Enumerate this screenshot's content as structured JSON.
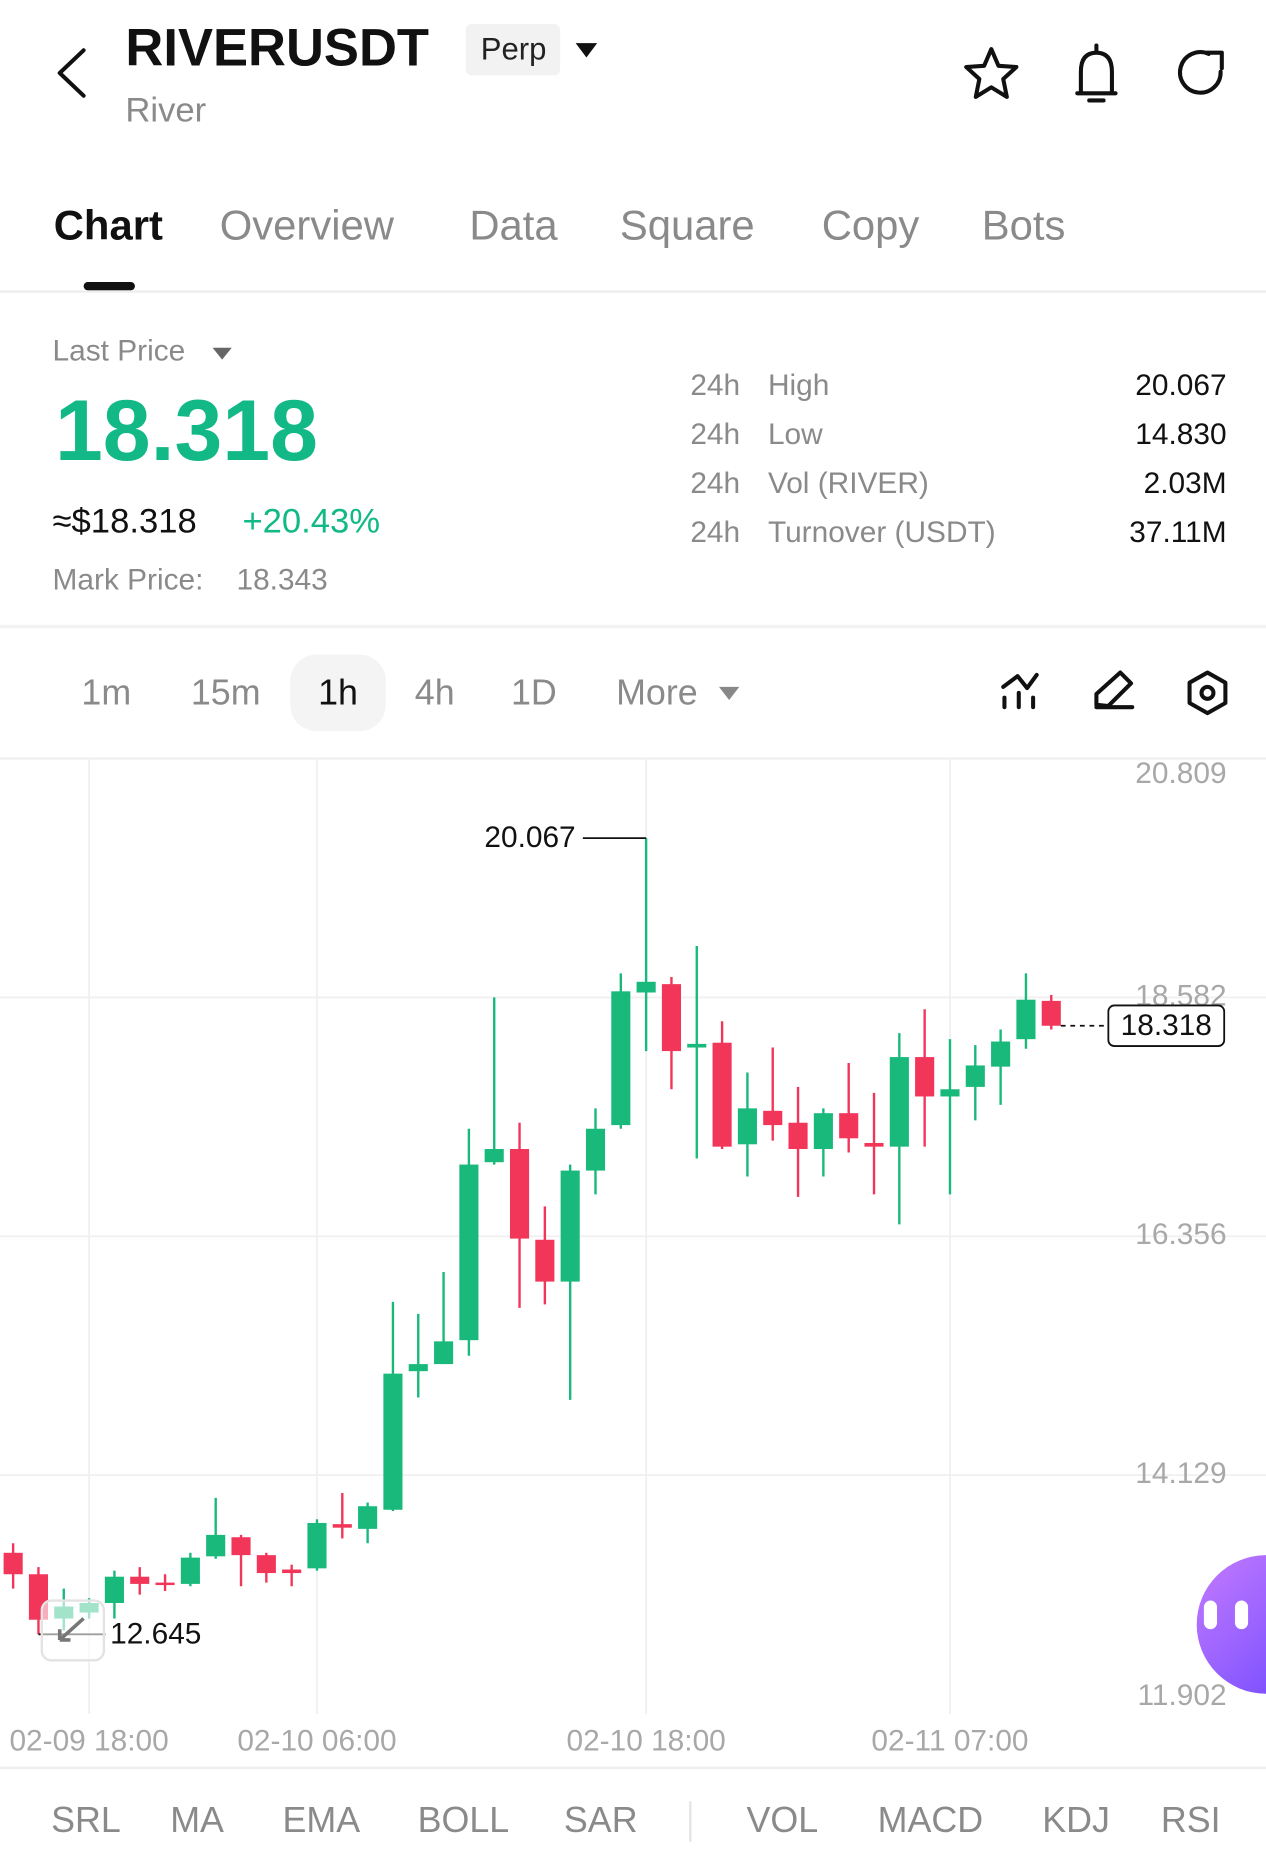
{
  "header": {
    "symbol": "RIVERUSDT",
    "badge": "Perp",
    "name": "River"
  },
  "tabs": [
    "Chart",
    "Overview",
    "Data",
    "Square",
    "Copy",
    "Bots"
  ],
  "price": {
    "label": "Last Price",
    "last": "18.318",
    "usd": "≈$18.318",
    "change": "+20.43%",
    "mark_label": "Mark Price:",
    "mark": "18.343"
  },
  "stats": [
    {
      "period": "24h",
      "label": "High",
      "value": "20.067"
    },
    {
      "period": "24h",
      "label": "Low",
      "value": "14.830"
    },
    {
      "period": "24h",
      "label": "Vol (RIVER)",
      "value": "2.03M"
    },
    {
      "period": "24h",
      "label": "Turnover (USDT)",
      "value": "37.11M"
    }
  ],
  "intervals": [
    "1m",
    "15m",
    "1h",
    "4h",
    "1D",
    "More"
  ],
  "indicators": [
    "SRL",
    "MA",
    "EMA",
    "BOLL",
    "SAR",
    "VOL",
    "MACD",
    "KDJ",
    "RSI"
  ],
  "chart_data": {
    "type": "candlestick",
    "categories": [
      null,
      null,
      null,
      "02-09 18:00",
      null,
      null,
      null,
      null,
      null,
      null,
      null,
      null,
      "02-10 06:00",
      null,
      null,
      null,
      null,
      null,
      null,
      null,
      null,
      null,
      null,
      null,
      null,
      "02-10 18:00",
      null,
      null,
      null,
      null,
      null,
      null,
      null,
      null,
      null,
      null,
      null,
      "02-11 07:00",
      null,
      null,
      null,
      null
    ],
    "open": [
      13.405,
      13.205,
      12.792,
      12.848,
      12.937,
      13.182,
      13.127,
      13.115,
      13.372,
      13.55,
      13.383,
      13.249,
      13.26,
      13.672,
      13.628,
      13.806,
      15.098,
      15.164,
      15.387,
      17.046,
      17.169,
      16.323,
      15.933,
      16.968,
      17.392,
      18.628,
      18.706,
      18.115,
      18.16,
      17.213,
      17.525,
      17.414,
      17.169,
      17.503,
      17.225,
      17.191,
      18.026,
      17.659,
      17.748,
      17.937,
      18.193,
      18.55
    ],
    "high": [
      13.494,
      13.271,
      13.071,
      12.982,
      13.238,
      13.271,
      13.205,
      13.405,
      13.917,
      13.572,
      13.405,
      13.294,
      13.717,
      13.962,
      13.873,
      15.744,
      15.632,
      16.022,
      17.358,
      18.583,
      17.414,
      16.634,
      17.024,
      17.548,
      18.806,
      20.067,
      18.772,
      19.062,
      18.36,
      17.882,
      18.115,
      17.748,
      17.548,
      17.971,
      17.692,
      18.249,
      18.472,
      18.193,
      18.138,
      18.283,
      18.806,
      18.605
    ],
    "low": [
      13.071,
      12.645,
      12.681,
      12.792,
      12.792,
      13.015,
      13.049,
      13.093,
      13.349,
      13.093,
      13.127,
      13.093,
      13.238,
      13.539,
      13.494,
      13.795,
      14.853,
      15.242,
      15.242,
      17.024,
      15.688,
      15.721,
      14.83,
      16.746,
      17.358,
      18.082,
      17.726,
      17.08,
      17.169,
      16.913,
      17.247,
      16.723,
      16.913,
      17.136,
      16.746,
      16.467,
      17.191,
      16.746,
      17.436,
      17.581,
      18.104,
      18.283
    ],
    "close": [
      13.205,
      12.781,
      12.904,
      12.937,
      13.182,
      13.115,
      13.104,
      13.36,
      13.572,
      13.383,
      13.216,
      13.216,
      13.683,
      13.639,
      13.839,
      15.075,
      15.164,
      15.376,
      17.024,
      17.169,
      16.334,
      15.933,
      16.968,
      17.358,
      18.639,
      18.728,
      18.082,
      18.149,
      17.191,
      17.548,
      17.392,
      17.169,
      17.503,
      17.269,
      17.191,
      18.026,
      17.659,
      17.726,
      17.948,
      18.171,
      18.561,
      18.318
    ],
    "ylim": [
      11.902,
      20.809
    ],
    "yticks": [
      20.809,
      18.582,
      16.356,
      14.129,
      11.902
    ],
    "up_color": "#19b97c",
    "down_color": "#f1365a",
    "grid": true
  }
}
